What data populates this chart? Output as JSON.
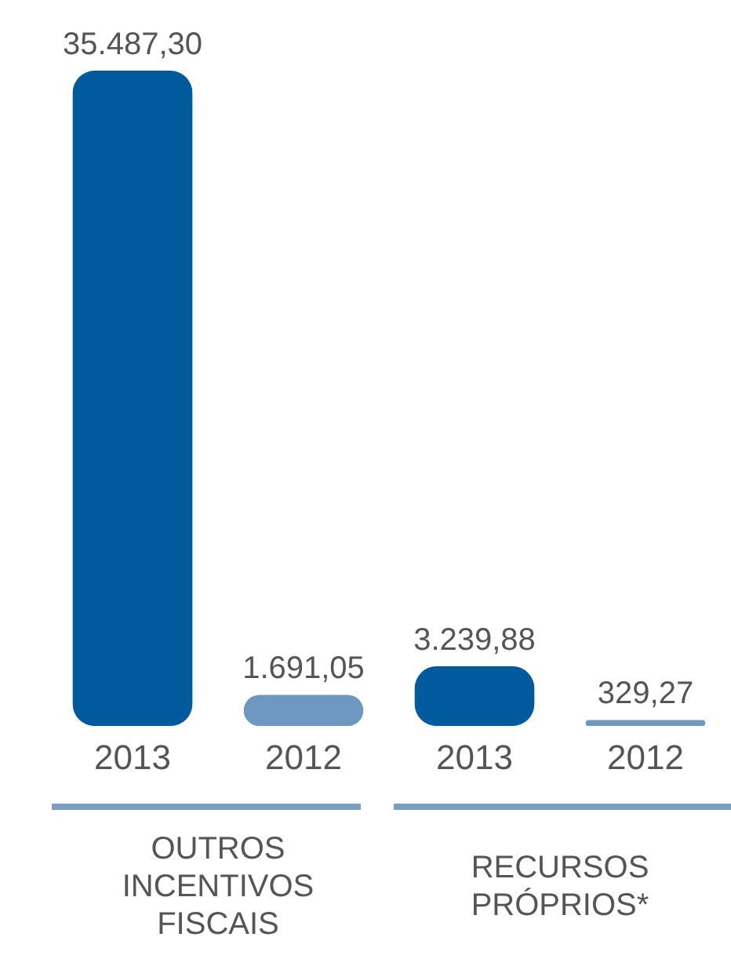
{
  "chart_data": {
    "type": "bar",
    "categories": [
      "2013",
      "2012",
      "2013",
      "2012"
    ],
    "values": [
      35487.3,
      1691.05,
      3239.88,
      329.27
    ],
    "colors": [
      "#005a9c",
      "#6d98c0",
      "#005a9c",
      "#6d98c0"
    ],
    "value_labels": [
      "35.487,30",
      "1.691,05",
      "3.239,88",
      "329,27"
    ],
    "annotations": [
      "OUTROS INCENTIVOS FISCAIS",
      "RECURSOS PRÓPRIOS*"
    ],
    "grid": false,
    "legend": false
  }
}
